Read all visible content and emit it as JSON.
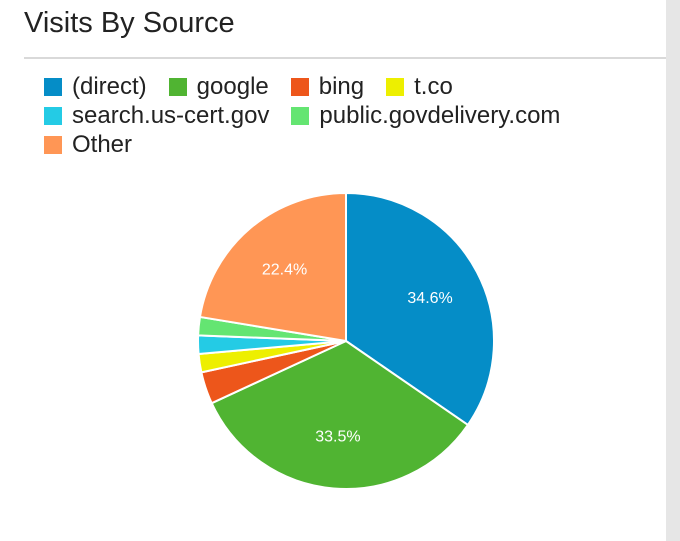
{
  "title": "Visits By Source",
  "legend_rows": [
    [
      0,
      1,
      2,
      3
    ],
    [
      4,
      5
    ],
    [
      6
    ]
  ],
  "colors": {
    "card_background": "#ffffff",
    "page_background": "#ececec",
    "title_text": "#222222",
    "divider": "#d9d9d9",
    "slice_label_text": "#ffffff"
  },
  "chart_data": {
    "type": "pie",
    "title": "Visits By Source",
    "legend_position": "top",
    "start_angle_deg": 0,
    "direction": "clockwise",
    "slices": [
      {
        "name": "(direct)",
        "value": 34.6,
        "color": "#058dc7",
        "label": "34.6%"
      },
      {
        "name": "google",
        "value": 33.5,
        "color": "#50b432",
        "label": "33.5%"
      },
      {
        "name": "bing",
        "value": 3.5,
        "color": "#ed561b",
        "label": ""
      },
      {
        "name": "t.co",
        "value": 2.0,
        "color": "#edef00",
        "label": ""
      },
      {
        "name": "search.us-cert.gov",
        "value": 2.0,
        "color": "#24cbe5",
        "label": ""
      },
      {
        "name": "public.govdelivery.com",
        "value": 2.0,
        "color": "#64e572",
        "label": ""
      },
      {
        "name": "Other",
        "value": 22.4,
        "color": "#ff9655",
        "label": "22.4%"
      }
    ]
  }
}
